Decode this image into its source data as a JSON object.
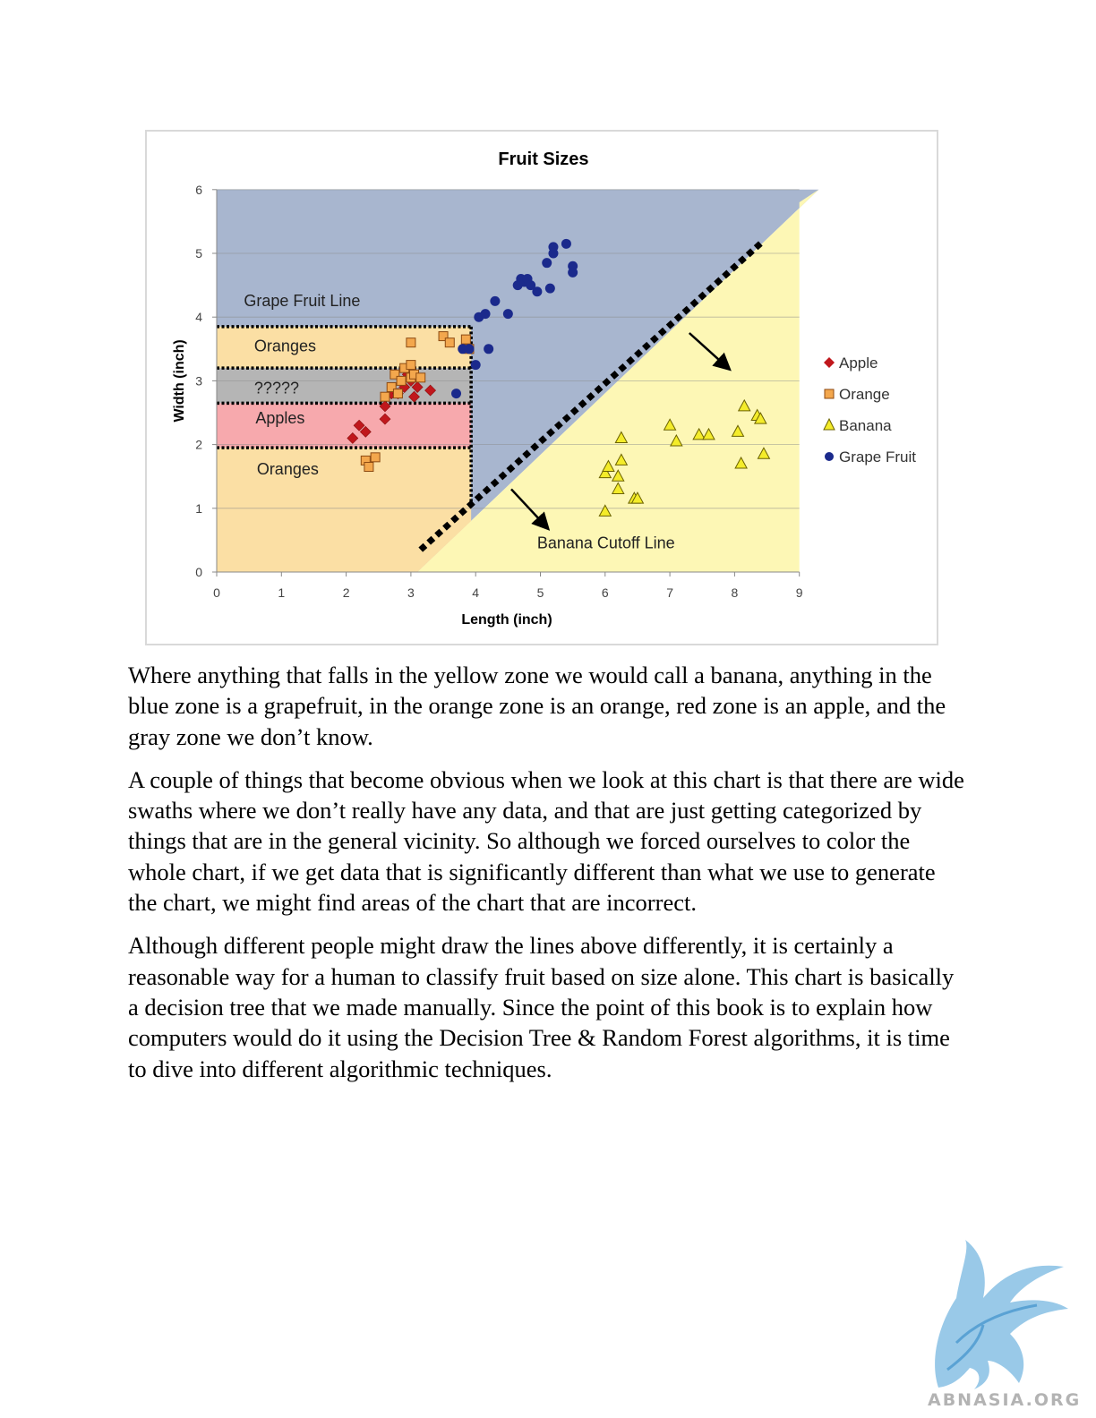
{
  "chart_data": {
    "type": "scatter",
    "title": "Fruit Sizes",
    "xlabel": "Length (inch)",
    "ylabel": "Width (inch)",
    "xlim": [
      0,
      9
    ],
    "ylim": [
      0,
      6
    ],
    "x_ticks": [
      "0",
      "1",
      "2",
      "3",
      "4",
      "5",
      "6",
      "7",
      "8",
      "9"
    ],
    "y_ticks": [
      "0",
      "1",
      "2",
      "3",
      "4",
      "5",
      "6"
    ],
    "grid": "horizontal",
    "legend_position": "right",
    "colors": {
      "apple": "#c0171c",
      "orange": "#f3a74d",
      "banana": "#f4ec2a",
      "grapefruit": "#1b2a8c",
      "blue_zone": "#a8b6cf",
      "yellow_zone": "#fdf7b5",
      "orange_zone": "#fbdfa4",
      "red_zone": "#f7a9ad",
      "gray_zone": "#b5b5b5"
    },
    "region_labels": {
      "grapefruit_line": "Grape Fruit Line",
      "oranges_top": "Oranges",
      "unknown": "?????",
      "apples": "Apples",
      "oranges_bottom": "Oranges",
      "banana_cutoff": "Banana Cutoff Line"
    },
    "series": [
      {
        "name": "Apple",
        "marker": "diamond",
        "color": "#c0171c",
        "points": [
          [
            2.1,
            2.1
          ],
          [
            2.2,
            2.3
          ],
          [
            2.3,
            2.2
          ],
          [
            2.6,
            2.4
          ],
          [
            2.6,
            2.6
          ],
          [
            2.7,
            2.8
          ],
          [
            2.8,
            2.8
          ],
          [
            2.9,
            2.9
          ],
          [
            3.0,
            3.0
          ],
          [
            3.05,
            2.75
          ],
          [
            3.1,
            2.9
          ],
          [
            3.3,
            2.85
          ],
          [
            2.95,
            3.1
          ]
        ]
      },
      {
        "name": "Orange",
        "marker": "square",
        "color": "#f3a74d",
        "points": [
          [
            2.3,
            1.75
          ],
          [
            2.35,
            1.65
          ],
          [
            2.45,
            1.8
          ],
          [
            2.6,
            2.75
          ],
          [
            2.7,
            2.9
          ],
          [
            2.75,
            3.1
          ],
          [
            2.8,
            2.8
          ],
          [
            2.85,
            3.0
          ],
          [
            2.9,
            3.2
          ],
          [
            3.0,
            3.05
          ],
          [
            3.0,
            3.25
          ],
          [
            3.05,
            3.1
          ],
          [
            3.15,
            3.05
          ],
          [
            3.0,
            3.6
          ],
          [
            3.5,
            3.7
          ],
          [
            3.6,
            3.6
          ],
          [
            3.85,
            3.65
          ],
          [
            3.9,
            3.5
          ]
        ]
      },
      {
        "name": "Banana",
        "marker": "triangle",
        "color": "#f4ec2a",
        "points": [
          [
            6.0,
            0.95
          ],
          [
            6.0,
            1.55
          ],
          [
            6.05,
            1.65
          ],
          [
            6.2,
            1.5
          ],
          [
            6.2,
            1.3
          ],
          [
            6.25,
            1.75
          ],
          [
            6.25,
            2.1
          ],
          [
            6.45,
            1.15
          ],
          [
            6.5,
            1.15
          ],
          [
            7.0,
            2.3
          ],
          [
            7.1,
            2.05
          ],
          [
            7.45,
            2.15
          ],
          [
            7.6,
            2.15
          ],
          [
            8.05,
            2.2
          ],
          [
            8.1,
            1.7
          ],
          [
            8.15,
            2.6
          ],
          [
            8.35,
            2.45
          ],
          [
            8.4,
            2.4
          ],
          [
            8.45,
            1.85
          ]
        ]
      },
      {
        "name": "Grape Fruit",
        "marker": "circle",
        "color": "#1b2a8c",
        "points": [
          [
            3.7,
            2.8
          ],
          [
            3.8,
            3.5
          ],
          [
            3.9,
            3.5
          ],
          [
            4.0,
            3.25
          ],
          [
            4.05,
            4.0
          ],
          [
            4.15,
            4.05
          ],
          [
            4.2,
            3.5
          ],
          [
            4.3,
            4.25
          ],
          [
            4.5,
            4.05
          ],
          [
            4.65,
            4.5
          ],
          [
            4.7,
            4.6
          ],
          [
            4.75,
            4.55
          ],
          [
            4.8,
            4.6
          ],
          [
            4.85,
            4.5
          ],
          [
            4.95,
            4.4
          ],
          [
            5.1,
            4.85
          ],
          [
            5.15,
            4.45
          ],
          [
            5.2,
            5.0
          ],
          [
            5.2,
            5.1
          ],
          [
            5.4,
            5.15
          ],
          [
            5.5,
            4.7
          ],
          [
            5.5,
            4.8
          ]
        ]
      }
    ]
  },
  "paragraphs": [
    "Where anything that falls in the yellow zone we would call a banana, anything in the blue zone is a grapefruit, in the orange zone is an orange, red zone is an apple, and the gray zone we don’t know.",
    "A couple of things that become obvious when we look at this chart is that there are wide swaths where we don’t really have any data, and that are just getting categorized by things that are in the general vicinity.  So although we forced ourselves to color the whole chart, if we get data that is significantly different than what we use to generate the chart, we might find areas of the chart that are incorrect.",
    "Although different people might draw the lines above differently, it is certainly a reasonable way for a human to classify fruit based on size alone.  This chart is basically a decision tree that we made manually.  Since the point of this book is to explain how computers would do it using the Decision Tree & Random Forest algorithms, it is time to dive into different algorithmic techniques."
  ],
  "logo": {
    "text": "ABNASIA.ORG",
    "icon": "griffin-icon"
  }
}
